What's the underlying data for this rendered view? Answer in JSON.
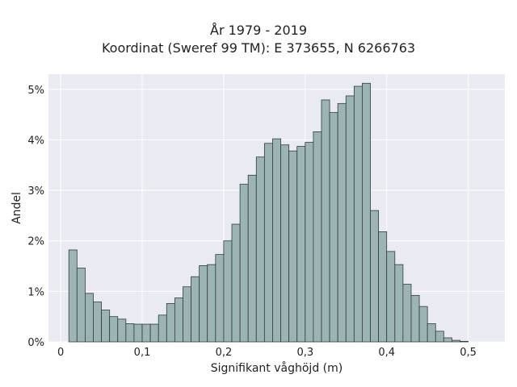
{
  "chart_data": {
    "type": "bar",
    "title": "År 1979 - 2019",
    "subtitle": "Koordinat (Sweref 99 TM): E 373655, N 6266763",
    "xlabel": "Signifikant våghöjd (m)",
    "ylabel": "Andel",
    "xlim": [
      -0.015,
      0.545
    ],
    "ylim": [
      0,
      0.053
    ],
    "xticks": [
      0,
      0.1,
      0.2,
      0.3,
      0.4,
      0.5
    ],
    "xtick_labels": [
      "0",
      "0,1",
      "0,2",
      "0,3",
      "0,4",
      "0,5"
    ],
    "yticks": [
      0,
      0.01,
      0.02,
      0.03,
      0.04,
      0.05
    ],
    "ytick_labels": [
      "0%",
      "1%",
      "2%",
      "3%",
      "4%",
      "5%"
    ],
    "bin_width": 0.01,
    "bin_start": 0.01,
    "values": [
      0.0182,
      0.0146,
      0.0096,
      0.0079,
      0.0063,
      0.005,
      0.0045,
      0.0036,
      0.0035,
      0.0035,
      0.0035,
      0.0053,
      0.0076,
      0.0087,
      0.0109,
      0.0129,
      0.0151,
      0.0153,
      0.0173,
      0.02,
      0.0233,
      0.0312,
      0.033,
      0.0366,
      0.0393,
      0.0402,
      0.039,
      0.0378,
      0.0387,
      0.0395,
      0.0416,
      0.0479,
      0.0454,
      0.0472,
      0.0487,
      0.0506,
      0.0512,
      0.026,
      0.0218,
      0.0179,
      0.0153,
      0.0114,
      0.0092,
      0.007,
      0.0036,
      0.0021,
      0.0008,
      0.0003,
      0.0001
    ],
    "grid": true,
    "bar_color": "#9db4b4",
    "edge_color": "#2f3d3d",
    "background_color": "#eaeaf2"
  }
}
